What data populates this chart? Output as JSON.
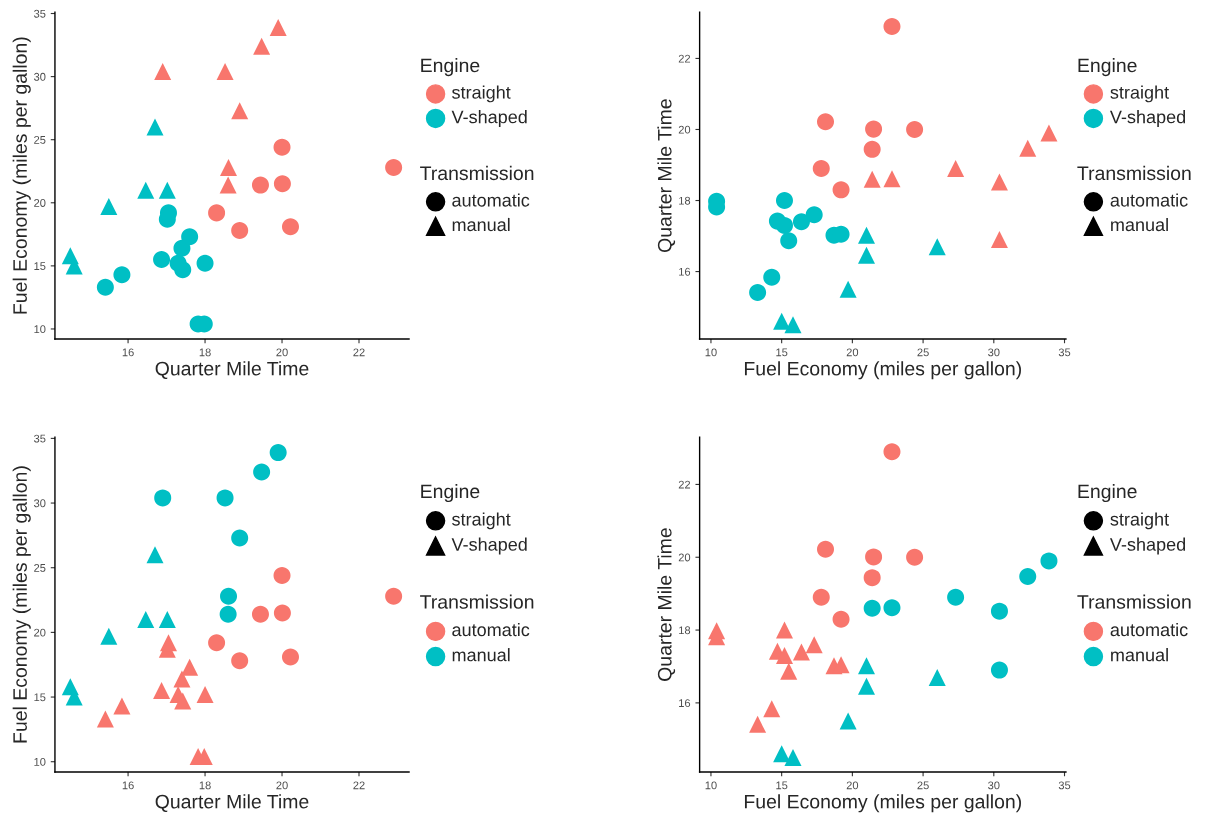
{
  "chart_data": [
    {
      "type": "scatter",
      "xlabel": "Quarter Mile Time",
      "ylabel": "Fuel Economy (miles per gallon)",
      "xlim": [
        14.1,
        23.3
      ],
      "ylim": [
        9.2,
        35.1
      ],
      "xticks": [
        16,
        18,
        20,
        22
      ],
      "yticks": [
        10,
        15,
        20,
        25,
        30,
        35
      ],
      "grid": false,
      "annotations": [
        "Engine",
        "straight",
        "V-shaped",
        "Transmission",
        "automatic",
        "manual"
      ],
      "series": [
        {
          "color": "#f8766d",
          "marker": "circle",
          "x": [
            19.44,
            20.22,
            20.0,
            22.9,
            18.3,
            18.9,
            20.01
          ],
          "values": [
            21.4,
            18.1,
            24.4,
            22.8,
            19.2,
            17.8,
            21.5
          ]
        },
        {
          "color": "#f8766d",
          "marker": "triangle",
          "x": [
            18.61,
            19.47,
            18.52,
            19.9,
            18.9,
            16.9,
            18.6
          ],
          "values": [
            22.8,
            32.4,
            30.4,
            33.9,
            27.3,
            30.4,
            21.4
          ]
        },
        {
          "color": "#00bfc4",
          "marker": "circle",
          "x": [
            17.02,
            15.84,
            17.4,
            17.6,
            18.0,
            17.98,
            17.82,
            17.42,
            16.87,
            17.3,
            15.41,
            17.05
          ],
          "values": [
            18.7,
            14.3,
            16.4,
            17.3,
            15.2,
            10.4,
            10.4,
            14.7,
            15.5,
            15.2,
            13.3,
            19.2
          ]
        },
        {
          "color": "#00bfc4",
          "marker": "triangle",
          "x": [
            16.46,
            17.02,
            16.7,
            14.5,
            15.5,
            14.6
          ],
          "values": [
            21.0,
            21.0,
            26.0,
            15.8,
            19.7,
            15.0
          ]
        }
      ]
    },
    {
      "type": "scatter",
      "xlabel": "Fuel Economy (miles per gallon)",
      "ylabel": "Quarter Mile Time",
      "xlim": [
        9.2,
        35.1
      ],
      "ylim": [
        14.1,
        23.3
      ],
      "xticks": [
        10,
        15,
        20,
        25,
        30,
        35
      ],
      "yticks": [
        16,
        18,
        20,
        22
      ],
      "grid": false,
      "annotations": [
        "Engine",
        "straight",
        "V-shaped",
        "Transmission",
        "automatic",
        "manual"
      ],
      "series": [
        {
          "color": "#f8766d",
          "marker": "circle",
          "x": [
            21.4,
            18.1,
            24.4,
            22.8,
            19.2,
            17.8,
            21.5
          ],
          "values": [
            19.44,
            20.22,
            20.0,
            22.9,
            18.3,
            18.9,
            20.01
          ]
        },
        {
          "color": "#f8766d",
          "marker": "triangle",
          "x": [
            22.8,
            32.4,
            30.4,
            33.9,
            27.3,
            30.4,
            21.4
          ],
          "values": [
            18.61,
            19.47,
            18.52,
            19.9,
            18.9,
            16.9,
            18.6
          ]
        },
        {
          "color": "#00bfc4",
          "marker": "circle",
          "x": [
            18.7,
            14.3,
            16.4,
            17.3,
            15.2,
            10.4,
            10.4,
            14.7,
            15.5,
            15.2,
            13.3,
            19.2
          ],
          "values": [
            17.02,
            15.84,
            17.4,
            17.6,
            18.0,
            17.98,
            17.82,
            17.42,
            16.87,
            17.3,
            15.41,
            17.05
          ]
        },
        {
          "color": "#00bfc4",
          "marker": "triangle",
          "x": [
            21.0,
            21.0,
            26.0,
            15.8,
            19.7,
            15.0
          ],
          "values": [
            16.46,
            17.02,
            16.7,
            14.5,
            15.5,
            14.6
          ]
        }
      ]
    },
    {
      "type": "scatter",
      "xlabel": "Quarter Mile Time",
      "ylabel": "Fuel Economy (miles per gallon)",
      "xlim": [
        14.1,
        23.3
      ],
      "ylim": [
        9.2,
        35.1
      ],
      "xticks": [
        16,
        18,
        20,
        22
      ],
      "yticks": [
        10,
        15,
        20,
        25,
        30,
        35
      ],
      "grid": false,
      "annotations": [
        "Engine",
        "straight",
        "V-shaped",
        "Transmission",
        "automatic",
        "manual"
      ],
      "series": [
        {
          "color": "#f8766d",
          "marker": "circle",
          "x": [
            19.44,
            20.22,
            20.0,
            22.9,
            18.3,
            18.9,
            20.01
          ],
          "values": [
            21.4,
            18.1,
            24.4,
            22.8,
            19.2,
            17.8,
            21.5
          ]
        },
        {
          "color": "#00bfc4",
          "marker": "circle",
          "x": [
            18.61,
            19.47,
            18.52,
            19.9,
            18.9,
            16.9,
            18.6
          ],
          "values": [
            22.8,
            32.4,
            30.4,
            33.9,
            27.3,
            30.4,
            21.4
          ]
        },
        {
          "color": "#f8766d",
          "marker": "triangle",
          "x": [
            17.02,
            15.84,
            17.4,
            17.6,
            18.0,
            17.98,
            17.82,
            17.42,
            16.87,
            17.3,
            15.41,
            17.05
          ],
          "values": [
            18.7,
            14.3,
            16.4,
            17.3,
            15.2,
            10.4,
            10.4,
            14.7,
            15.5,
            15.2,
            13.3,
            19.2
          ]
        },
        {
          "color": "#00bfc4",
          "marker": "triangle",
          "x": [
            16.46,
            17.02,
            16.7,
            14.5,
            15.5,
            14.6
          ],
          "values": [
            21.0,
            21.0,
            26.0,
            15.8,
            19.7,
            15.0
          ]
        }
      ]
    },
    {
      "type": "scatter",
      "xlabel": "Fuel Economy (miles per gallon)",
      "ylabel": "Quarter Mile Time",
      "xlim": [
        9.2,
        35.1
      ],
      "ylim": [
        14.1,
        23.3
      ],
      "xticks": [
        10,
        15,
        20,
        25,
        30,
        35
      ],
      "yticks": [
        16,
        18,
        20,
        22
      ],
      "grid": false,
      "annotations": [
        "Engine",
        "straight",
        "V-shaped",
        "Transmission",
        "automatic",
        "manual"
      ],
      "series": [
        {
          "color": "#f8766d",
          "marker": "circle",
          "x": [
            21.4,
            18.1,
            24.4,
            22.8,
            19.2,
            17.8,
            21.5
          ],
          "values": [
            19.44,
            20.22,
            20.0,
            22.9,
            18.3,
            18.9,
            20.01
          ]
        },
        {
          "color": "#00bfc4",
          "marker": "circle",
          "x": [
            22.8,
            32.4,
            30.4,
            33.9,
            27.3,
            30.4,
            21.4
          ],
          "values": [
            18.61,
            19.47,
            18.52,
            19.9,
            18.9,
            16.9,
            18.6
          ]
        },
        {
          "color": "#f8766d",
          "marker": "triangle",
          "x": [
            18.7,
            14.3,
            16.4,
            17.3,
            15.2,
            10.4,
            10.4,
            14.7,
            15.5,
            15.2,
            13.3,
            19.2
          ],
          "values": [
            17.02,
            15.84,
            17.4,
            17.6,
            18.0,
            17.98,
            17.82,
            17.42,
            16.87,
            17.3,
            15.41,
            17.05
          ]
        },
        {
          "color": "#00bfc4",
          "marker": "triangle",
          "x": [
            21.0,
            21.0,
            26.0,
            15.8,
            19.7,
            15.0
          ],
          "values": [
            16.46,
            17.02,
            16.7,
            14.5,
            15.5,
            14.6
          ]
        }
      ]
    }
  ]
}
